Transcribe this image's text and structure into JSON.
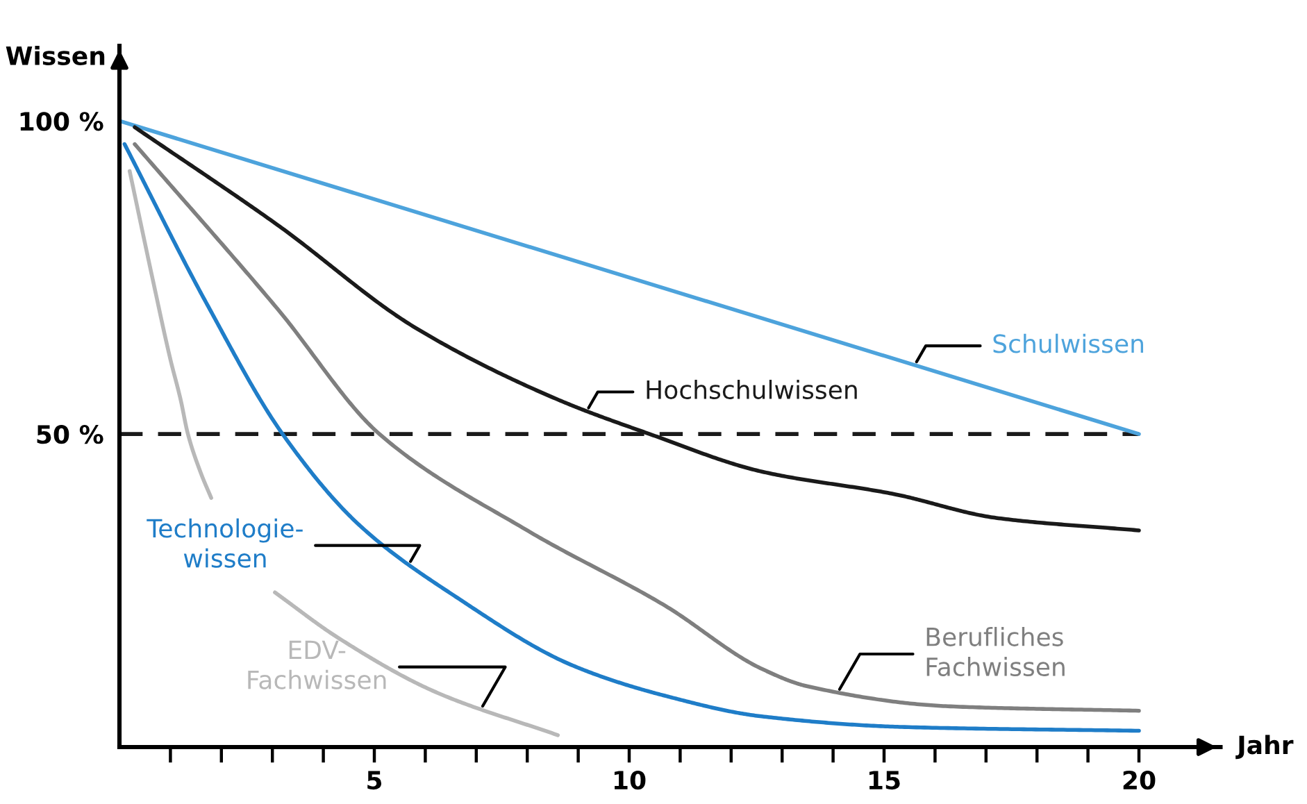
{
  "chart_data": {
    "type": "line",
    "xlabel": "Jahr",
    "ylabel": "Wissen",
    "xlim": [
      0,
      21.6
    ],
    "ylim": [
      0,
      112
    ],
    "xticks": [
      {
        "value": 1,
        "label": null
      },
      {
        "value": 2,
        "label": null
      },
      {
        "value": 3,
        "label": null
      },
      {
        "value": 4,
        "label": null
      },
      5,
      {
        "value": 6,
        "label": null
      },
      {
        "value": 7,
        "label": null
      },
      {
        "value": 8,
        "label": null
      },
      {
        "value": 9,
        "label": null
      },
      10,
      {
        "value": 11,
        "label": null
      },
      {
        "value": 12,
        "label": null
      },
      {
        "value": 13,
        "label": null
      },
      {
        "value": 14,
        "label": null
      },
      15,
      {
        "value": 16,
        "label": null
      },
      {
        "value": 17,
        "label": null
      },
      {
        "value": 18,
        "label": null
      },
      {
        "value": 19,
        "label": null
      },
      20
    ],
    "yticks": [
      {
        "value": 50,
        "label": "50 %"
      },
      {
        "value": 100,
        "label": "100 %"
      }
    ],
    "grid": false,
    "legend": false,
    "marker": "none",
    "line_style": "solid",
    "ref_lines": [
      {
        "axis": "y",
        "value": 50,
        "color": "#1a1a1a",
        "line_style": "dashed"
      }
    ],
    "series": [
      {
        "name": "Schulwissen",
        "color": "#4da3dc",
        "x": [
          0,
          20
        ],
        "values": [
          100,
          50
        ]
      },
      {
        "name": "Hochschulwissen",
        "color": "#1a1a1a",
        "x": [
          0.3,
          3.1,
          5.8,
          8.6,
          10.4,
          12.6,
          15.2,
          17.2,
          20
        ],
        "values": [
          99,
          83.4,
          67,
          55.5,
          50,
          44,
          40.4,
          36.6,
          34.6
        ]
      },
      {
        "name": "Berufliches\nFachwissen",
        "color": "#7f7f7f",
        "x": [
          0.3,
          3.1,
          5.1,
          8.0,
          10.7,
          12.6,
          13.5,
          16.3,
          20
        ],
        "values": [
          96.3,
          70,
          50,
          34.6,
          22.6,
          12.5,
          9.7,
          6.5,
          5.8
        ]
      },
      {
        "name": "Technologie-\nwissen",
        "color": "#1f7dc8",
        "x": [
          0.1,
          1.7,
          3.2,
          4.7,
          6.6,
          8.9,
          10.7,
          12.6,
          15.4,
          20
        ],
        "values": [
          96.3,
          71,
          50,
          35.5,
          24,
          13,
          8.2,
          4.9,
          3.2,
          2.6
        ]
      },
      {
        "name": "EDV-\nFachwissen",
        "color": "#b8b8b8",
        "x": [
          0.2,
          0.65,
          1.0,
          1.2,
          1.34,
          1.6,
          1.8,
          null,
          3.05,
          4.3,
          6.2,
          8.6
        ],
        "values": [
          92,
          74.8,
          61.9,
          55.5,
          50.1,
          43.7,
          39.8,
          null,
          24.7,
          17.4,
          8.8,
          1.9
        ]
      }
    ]
  }
}
